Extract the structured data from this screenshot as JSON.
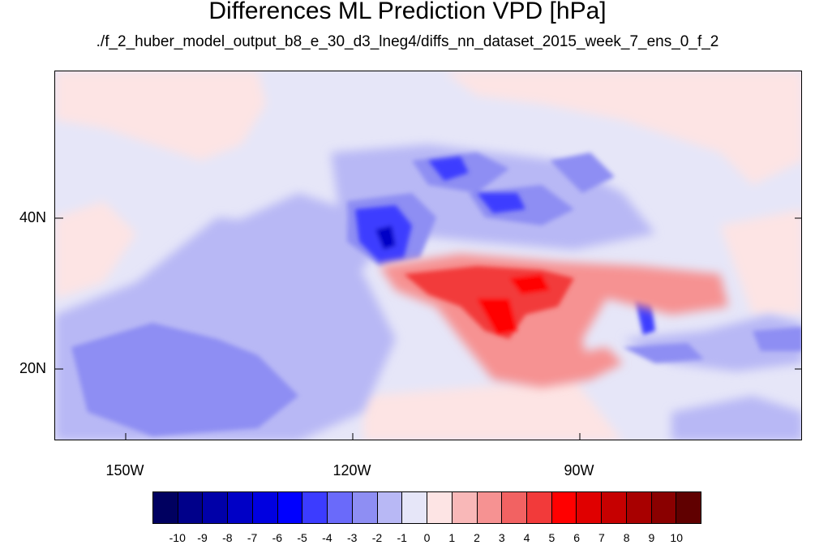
{
  "title": "Differences ML Prediction VPD [hPa]",
  "subtitle": "./f_2_huber_model_output_b8_e_30_d3_lneg4/diffs_nn_dataset_2015_week_7_ens_0_f_2",
  "lat_labels": [
    "40N",
    "20N"
  ],
  "lon_labels": [
    "150W",
    "120W",
    "90W"
  ],
  "colorbar": {
    "labels": [
      "-10",
      "-9",
      "-8",
      "-7",
      "-6",
      "-5",
      "-4",
      "-3",
      "-2",
      "-1",
      "0",
      "1",
      "2",
      "3",
      "4",
      "5",
      "6",
      "7",
      "8",
      "9",
      "10"
    ],
    "colors": [
      "#000060",
      "#00008a",
      "#0000a8",
      "#0000c6",
      "#0000e0",
      "#0000ff",
      "#3c3cff",
      "#6a6afa",
      "#8e8ef3",
      "#b8b8f5",
      "#e6e6f8",
      "#fde4e4",
      "#f9b8b8",
      "#f69292",
      "#f26262",
      "#f23a3a",
      "#ff0000",
      "#e00000",
      "#c60000",
      "#a80000",
      "#8a0000",
      "#600000"
    ]
  }
}
